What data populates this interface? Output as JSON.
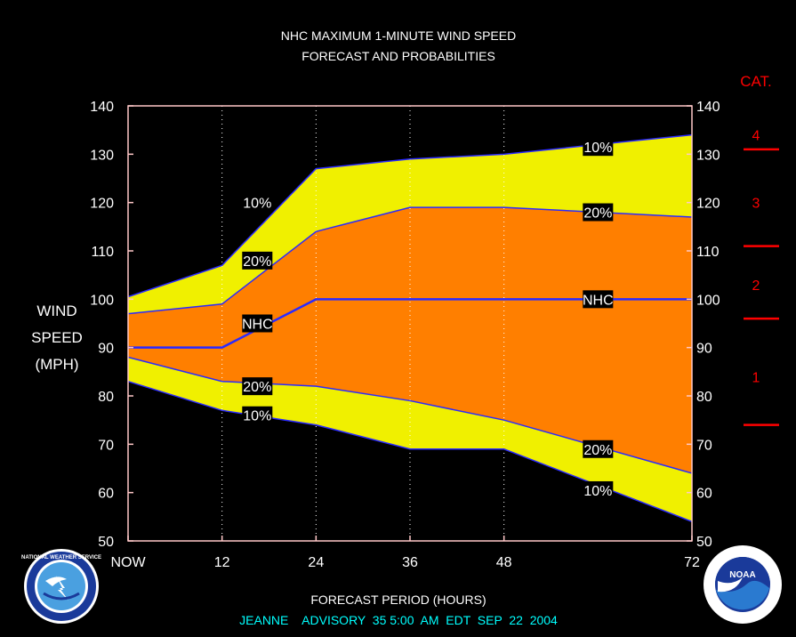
{
  "chart_data": {
    "type": "area",
    "title": "NHC MAXIMUM 1-MINUTE WIND SPEED",
    "subtitle": "FORECAST AND PROBABILITIES",
    "ylabel": [
      "WIND",
      "SPEED",
      "(MPH)"
    ],
    "xlabel": "FORECAST PERIOD (HOURS)",
    "footer": "JEANNE    ADVISORY  35 5:00  AM  EDT  SEP  22  2004",
    "xlim": [
      0,
      72
    ],
    "ylim": [
      50,
      140
    ],
    "x_ticks": [
      0,
      12,
      24,
      36,
      48,
      72
    ],
    "x_tick_labels": [
      "NOW",
      "12",
      "24",
      "36",
      "48",
      "72"
    ],
    "y_ticks": [
      50,
      60,
      70,
      80,
      90,
      100,
      110,
      120,
      130,
      140
    ],
    "y_tick_labels": [
      "50",
      "60",
      "70",
      "80",
      "90",
      "100",
      "110",
      "120",
      "130",
      "140"
    ],
    "x": [
      0,
      12,
      24,
      36,
      48,
      72
    ],
    "series": [
      {
        "name": "10%",
        "values": [
          100.5,
          107,
          127,
          129,
          130,
          134
        ],
        "band_fill": "#f0f000"
      },
      {
        "name": "20%",
        "values": [
          97,
          99,
          114,
          119,
          119,
          117
        ],
        "band_fill": "#ff7f00"
      },
      {
        "name": "NHC",
        "values": [
          90,
          90,
          100,
          100,
          100,
          100
        ]
      },
      {
        "name": "20%",
        "values": [
          88,
          83,
          82,
          79,
          75,
          64
        ],
        "band_fill": "#ff7f00"
      },
      {
        "name": "10%",
        "values": [
          83,
          77,
          74,
          69,
          69,
          54
        ],
        "band_fill": "#f0f000"
      }
    ],
    "curve_labels": [
      {
        "text": "10%",
        "x": 16.5,
        "y": 120
      },
      {
        "text": "20%",
        "x": 16.5,
        "y": 108
      },
      {
        "text": "NHC",
        "x": 16.5,
        "y": 95
      },
      {
        "text": "20%",
        "x": 16.5,
        "y": 82
      },
      {
        "text": "10%",
        "x": 16.5,
        "y": 76
      },
      {
        "text": "10%",
        "x": 60,
        "y": 131.5
      },
      {
        "text": "20%",
        "x": 60,
        "y": 118
      },
      {
        "text": "NHC",
        "x": 60,
        "y": 100
      },
      {
        "text": "20%",
        "x": 60,
        "y": 69
      },
      {
        "text": "10%",
        "x": 60,
        "y": 60.5
      }
    ],
    "category_title": "CAT.",
    "category_labels": [
      {
        "text": "1",
        "y": 84
      },
      {
        "text": "2",
        "y": 103
      },
      {
        "text": "3",
        "y": 120
      },
      {
        "text": "4",
        "y": 134
      }
    ],
    "category_thresholds": [
      74,
      96,
      111,
      131
    ],
    "colors": {
      "background": "#000000",
      "text": "#ffffff",
      "line": "#2a2aff",
      "category": "#ff0000",
      "footer": "#00ffff",
      "frame": "#ffc8c8"
    },
    "vertical_gridlines": [
      12,
      24,
      36,
      48
    ],
    "grid": false
  },
  "logos": {
    "left_icon": "nws-logo-icon",
    "left_text": "NATIONAL WEATHER SERVICE",
    "right_icon": "noaa-logo-icon",
    "right_text": "NOAA"
  }
}
